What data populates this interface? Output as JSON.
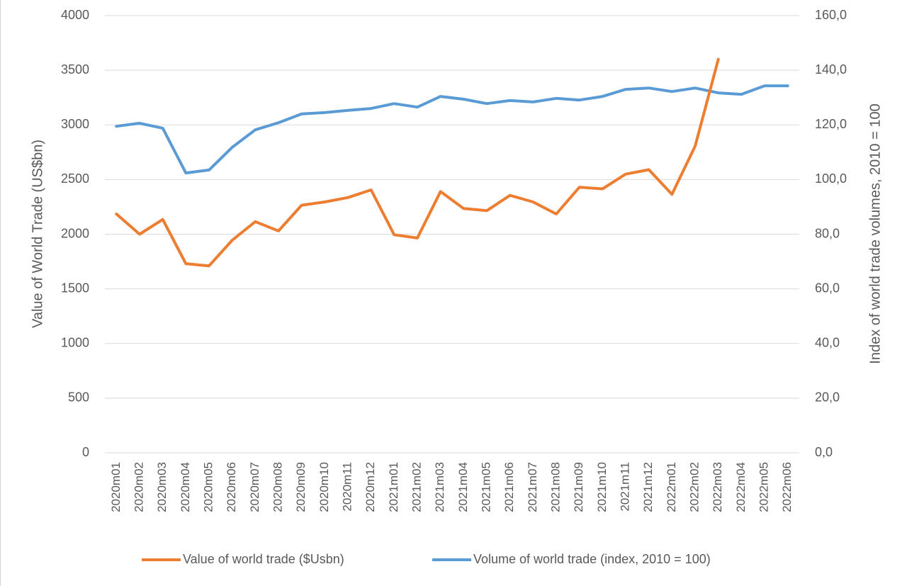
{
  "chart_data": {
    "type": "line",
    "categories": [
      "2020m01",
      "2020m02",
      "2020m03",
      "2020m04",
      "2020m05",
      "2020m06",
      "2020m07",
      "2020m08",
      "2020m09",
      "2020m10",
      "2020m11",
      "2020m12",
      "2021m01",
      "2021m02",
      "2021m03",
      "2021m04",
      "2021m05",
      "2021m06",
      "2021m07",
      "2021m08",
      "2021m09",
      "2021m10",
      "2021m11",
      "2021m12",
      "2022m01",
      "2022m02",
      "2022m03",
      "2022m04",
      "2022m05",
      "2022m06"
    ],
    "series": [
      {
        "name": "Value of world trade ($Usbn)",
        "color": "#ed7d31",
        "values": [
          2185,
          2000,
          2135,
          1730,
          1710,
          1945,
          2115,
          2030,
          2265,
          2295,
          2335,
          2405,
          1995,
          1965,
          2390,
          2235,
          2215,
          2355,
          2295,
          2185,
          2430,
          2415,
          2550,
          2590,
          2365,
          2805,
          3600,
          null,
          null,
          null
        ]
      },
      {
        "name": "Volume of world trade (index, 2010 = 100)",
        "color": "#5b9bd5",
        "axis": "y2",
        "values": [
          119.5,
          120.6,
          118.8,
          102.4,
          103.5,
          111.8,
          118.2,
          120.8,
          124.0,
          124.5,
          125.3,
          126.0,
          127.8,
          126.5,
          130.4,
          129.4,
          127.8,
          128.9,
          128.4,
          129.7,
          129.1,
          130.4,
          133.0,
          133.5,
          132.2,
          133.5,
          131.7,
          131.2,
          134.3,
          134.3
        ]
      }
    ],
    "ylabel": "Value of World Trade (US$bn)",
    "y2label": "Index of world trade volumes, 2010 = 100",
    "ylim": [
      0,
      4000
    ],
    "yticks": [
      0,
      500,
      1000,
      1500,
      2000,
      2500,
      3000,
      3500,
      4000
    ],
    "y2lim": [
      0,
      160
    ],
    "y2ticks": [
      {
        "value": 0,
        "label": "0,0"
      },
      {
        "value": 20,
        "label": "20,0"
      },
      {
        "value": 40,
        "label": "40,0"
      },
      {
        "value": 60,
        "label": "60,0"
      },
      {
        "value": 80,
        "label": "80,0"
      },
      {
        "value": 100,
        "label": "100,0"
      },
      {
        "value": 120,
        "label": "120,0"
      },
      {
        "value": 140,
        "label": "140,0"
      },
      {
        "value": 160,
        "label": "160,0"
      }
    ],
    "grid": true,
    "legend": "bottom"
  }
}
